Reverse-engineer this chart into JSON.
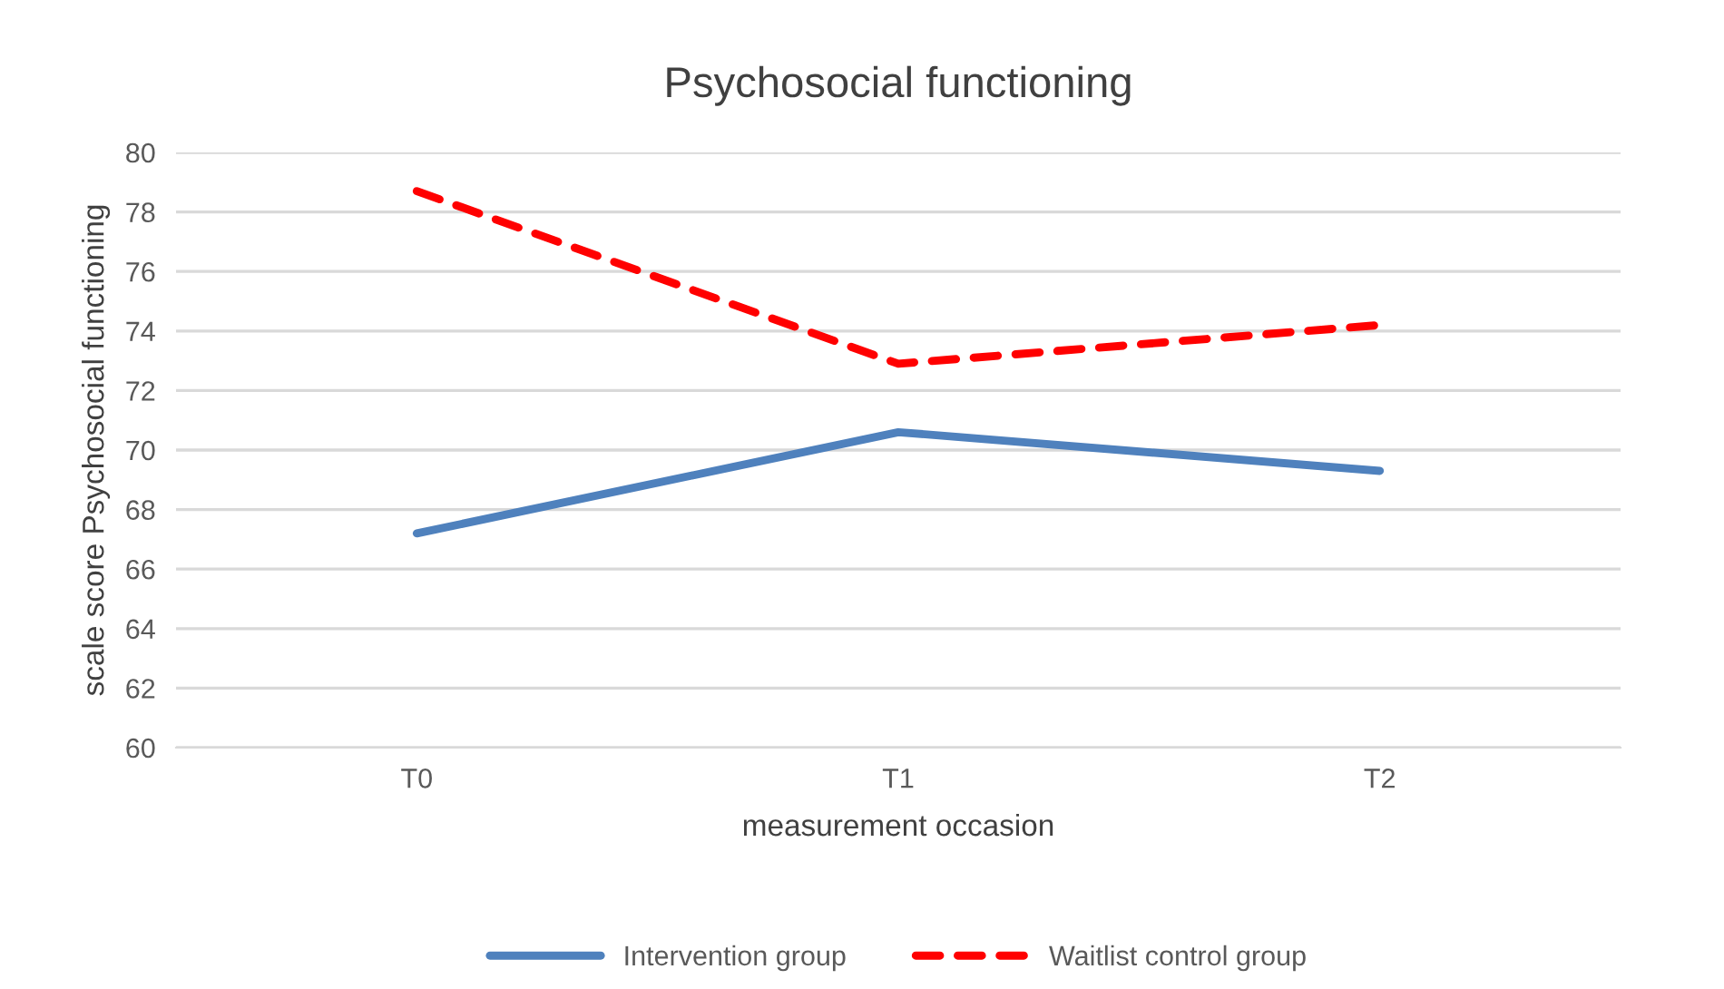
{
  "chart_data": {
    "type": "line",
    "title": "Psychosocial functioning",
    "xlabel": "measurement occasion",
    "ylabel": "scale score Psychosocial functioning",
    "categories": [
      "T0",
      "T1",
      "T2"
    ],
    "series": [
      {
        "name": "Intervention group",
        "color": "#4f81bd",
        "values": [
          67.2,
          70.6,
          69.3
        ],
        "line_style": "solid"
      },
      {
        "name": "Waitlist control group",
        "color": "#ff0000",
        "values": [
          78.7,
          72.9,
          74.2
        ],
        "line_style": "dashed"
      }
    ],
    "ylim": [
      60,
      80
    ],
    "yticks": [
      60,
      62,
      64,
      66,
      68,
      70,
      72,
      74,
      76,
      78,
      80
    ],
    "grid": "y",
    "legend": "bottom",
    "marker": "none"
  }
}
